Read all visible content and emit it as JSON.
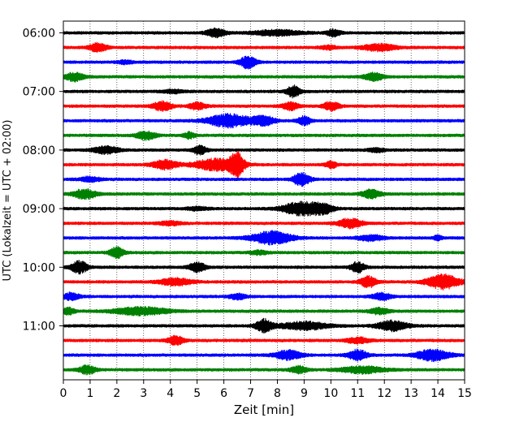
{
  "chart_data": {
    "type": "line",
    "title": "",
    "xlabel": "Zeit  [min]",
    "ylabel": "UTC (Lokalzeit = UTC + 02:00)",
    "xlim": [
      0,
      15
    ],
    "x_ticks": [
      "0",
      "1",
      "2",
      "3",
      "4",
      "5",
      "6",
      "7",
      "8",
      "9",
      "10",
      "11",
      "12",
      "13",
      "14",
      "15"
    ],
    "y_tick_labels": [
      "06:00",
      "07:00",
      "08:00",
      "09:00",
      "10:00",
      "11:00"
    ],
    "y_tick_rows": [
      0,
      4,
      8,
      12,
      16,
      20
    ],
    "grid_x": true,
    "rows_per_hour": 4,
    "row_minutes": 15,
    "color_cycle": [
      "#000000",
      "#ff0000",
      "#0000ff",
      "#008000"
    ],
    "traces": [
      {
        "start": "06:00",
        "color": "#000000",
        "events": [
          {
            "t": 5.7,
            "a": 0.55,
            "w": 0.35
          },
          {
            "t": 8.0,
            "a": 0.35,
            "w": 0.9
          },
          {
            "t": 10.1,
            "a": 0.45,
            "w": 0.25
          }
        ]
      },
      {
        "start": "06:15",
        "color": "#ff0000",
        "events": [
          {
            "t": 1.3,
            "a": 0.6,
            "w": 0.3
          },
          {
            "t": 11.8,
            "a": 0.45,
            "w": 0.6
          },
          {
            "t": 9.9,
            "a": 0.25,
            "w": 0.3
          }
        ]
      },
      {
        "start": "06:30",
        "color": "#0000ff",
        "events": [
          {
            "t": 6.9,
            "a": 0.8,
            "w": 0.3
          },
          {
            "t": 2.3,
            "a": 0.2,
            "w": 0.3
          }
        ]
      },
      {
        "start": "06:45",
        "color": "#008000",
        "events": [
          {
            "t": 0.4,
            "a": 0.55,
            "w": 0.35
          },
          {
            "t": 11.6,
            "a": 0.5,
            "w": 0.35
          }
        ]
      },
      {
        "start": "07:00",
        "color": "#000000",
        "events": [
          {
            "t": 8.6,
            "a": 0.75,
            "w": 0.25
          },
          {
            "t": 4.1,
            "a": 0.2,
            "w": 0.4
          }
        ]
      },
      {
        "start": "07:15",
        "color": "#ff0000",
        "events": [
          {
            "t": 3.7,
            "a": 0.6,
            "w": 0.35
          },
          {
            "t": 5.0,
            "a": 0.45,
            "w": 0.3
          },
          {
            "t": 8.5,
            "a": 0.5,
            "w": 0.3
          },
          {
            "t": 10.0,
            "a": 0.55,
            "w": 0.3
          }
        ]
      },
      {
        "start": "07:30",
        "color": "#0000ff",
        "events": [
          {
            "t": 6.2,
            "a": 0.85,
            "w": 0.8
          },
          {
            "t": 7.5,
            "a": 0.6,
            "w": 0.4
          },
          {
            "t": 9.0,
            "a": 0.55,
            "w": 0.25
          }
        ]
      },
      {
        "start": "07:45",
        "color": "#008000",
        "events": [
          {
            "t": 3.1,
            "a": 0.55,
            "w": 0.35
          },
          {
            "t": 4.7,
            "a": 0.4,
            "w": 0.2
          }
        ]
      },
      {
        "start": "08:00",
        "color": "#000000",
        "events": [
          {
            "t": 1.6,
            "a": 0.5,
            "w": 0.45
          },
          {
            "t": 5.1,
            "a": 0.55,
            "w": 0.25
          },
          {
            "t": 11.7,
            "a": 0.25,
            "w": 0.3
          }
        ]
      },
      {
        "start": "08:15",
        "color": "#ff0000",
        "events": [
          {
            "t": 3.8,
            "a": 0.6,
            "w": 0.45
          },
          {
            "t": 5.7,
            "a": 0.75,
            "w": 0.8
          },
          {
            "t": 6.5,
            "a": 1.6,
            "w": 0.25
          },
          {
            "t": 10.0,
            "a": 0.5,
            "w": 0.2
          }
        ]
      },
      {
        "start": "08:30",
        "color": "#0000ff",
        "events": [
          {
            "t": 8.9,
            "a": 0.9,
            "w": 0.3
          },
          {
            "t": 1.0,
            "a": 0.3,
            "w": 0.4
          }
        ]
      },
      {
        "start": "08:45",
        "color": "#008000",
        "events": [
          {
            "t": 0.8,
            "a": 0.65,
            "w": 0.4
          },
          {
            "t": 11.5,
            "a": 0.55,
            "w": 0.35
          }
        ]
      },
      {
        "start": "09:00",
        "color": "#000000",
        "events": [
          {
            "t": 8.9,
            "a": 0.85,
            "w": 0.7
          },
          {
            "t": 9.7,
            "a": 0.55,
            "w": 0.4
          },
          {
            "t": 5.0,
            "a": 0.2,
            "w": 0.4
          }
        ]
      },
      {
        "start": "09:15",
        "color": "#ff0000",
        "events": [
          {
            "t": 10.7,
            "a": 0.6,
            "w": 0.45
          },
          {
            "t": 4.0,
            "a": 0.25,
            "w": 0.4
          }
        ]
      },
      {
        "start": "09:30",
        "color": "#0000ff",
        "events": [
          {
            "t": 7.8,
            "a": 0.85,
            "w": 0.75
          },
          {
            "t": 11.5,
            "a": 0.35,
            "w": 0.5
          },
          {
            "t": 14.0,
            "a": 0.3,
            "w": 0.15
          }
        ]
      },
      {
        "start": "09:45",
        "color": "#008000",
        "events": [
          {
            "t": 2.0,
            "a": 0.7,
            "w": 0.25
          },
          {
            "t": 7.3,
            "a": 0.25,
            "w": 0.3
          }
        ]
      },
      {
        "start": "10:00",
        "color": "#000000",
        "events": [
          {
            "t": 0.6,
            "a": 0.8,
            "w": 0.3
          },
          {
            "t": 5.0,
            "a": 0.65,
            "w": 0.3
          },
          {
            "t": 11.0,
            "a": 0.7,
            "w": 0.25
          }
        ]
      },
      {
        "start": "10:15",
        "color": "#ff0000",
        "events": [
          {
            "t": 4.2,
            "a": 0.45,
            "w": 0.6
          },
          {
            "t": 11.4,
            "a": 0.7,
            "w": 0.3
          },
          {
            "t": 14.2,
            "a": 0.95,
            "w": 0.6
          }
        ]
      },
      {
        "start": "10:30",
        "color": "#0000ff",
        "events": [
          {
            "t": 0.3,
            "a": 0.45,
            "w": 0.3
          },
          {
            "t": 6.5,
            "a": 0.35,
            "w": 0.3
          },
          {
            "t": 11.9,
            "a": 0.45,
            "w": 0.35
          }
        ]
      },
      {
        "start": "10:45",
        "color": "#008000",
        "events": [
          {
            "t": 0.2,
            "a": 0.45,
            "w": 0.2
          },
          {
            "t": 2.9,
            "a": 0.5,
            "w": 1.0
          },
          {
            "t": 11.8,
            "a": 0.4,
            "w": 0.35
          }
        ]
      },
      {
        "start": "11:00",
        "color": "#000000",
        "events": [
          {
            "t": 7.5,
            "a": 0.85,
            "w": 0.3
          },
          {
            "t": 9.0,
            "a": 0.5,
            "w": 0.9
          },
          {
            "t": 12.3,
            "a": 0.65,
            "w": 0.55
          }
        ]
      },
      {
        "start": "11:15",
        "color": "#ff0000",
        "events": [
          {
            "t": 4.2,
            "a": 0.55,
            "w": 0.3
          },
          {
            "t": 11.0,
            "a": 0.4,
            "w": 0.4
          }
        ]
      },
      {
        "start": "11:30",
        "color": "#0000ff",
        "events": [
          {
            "t": 8.4,
            "a": 0.6,
            "w": 0.5
          },
          {
            "t": 11.0,
            "a": 0.7,
            "w": 0.35
          },
          {
            "t": 13.8,
            "a": 0.75,
            "w": 0.6
          }
        ]
      },
      {
        "start": "11:45",
        "color": "#008000",
        "events": [
          {
            "t": 0.9,
            "a": 0.55,
            "w": 0.3
          },
          {
            "t": 8.8,
            "a": 0.45,
            "w": 0.3
          },
          {
            "t": 11.2,
            "a": 0.45,
            "w": 0.8
          }
        ]
      }
    ]
  }
}
